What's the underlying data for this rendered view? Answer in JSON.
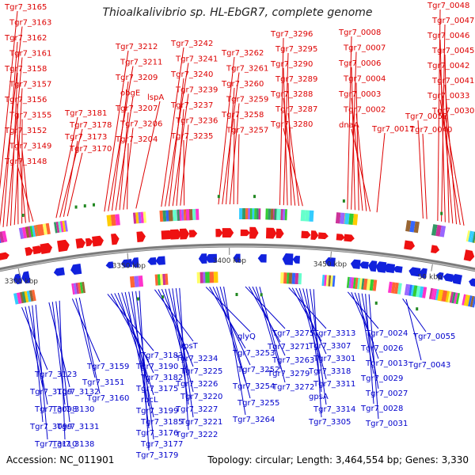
{
  "title": "Thioalkalivibrio sp. HL-EbGR7, complete genome",
  "accession_text": "Accession: NC_011901",
  "summary_text": "Topology: circular; Length: 3,464,554 bp; Genes: 3,330",
  "colors": {
    "forward_label": "#dd0000",
    "reverse_label": "#0000cc",
    "forward_gene": "#ee1111",
    "reverse_gene": "#1122dd",
    "backbone": "#7a7a7a",
    "scale_tick": "#7a7a7a"
  },
  "scale_labels": [
    "3300 kbp",
    "3350 kbp",
    "3400 kbp",
    "3450 kbp",
    "50 kbp"
  ],
  "forward_labels": [
    "Tgr7_3165",
    "Tgr7_3163",
    "Tgr7_3162",
    "Tgr7_3161",
    "Tgr7_3158",
    "Tgr7_3157",
    "Tgr7_3156",
    "Tgr7_3155",
    "Tgr7_3152",
    "Tgr7_3149",
    "Tgr7_3148",
    "Tgr7_3181",
    "Tgr7_3178",
    "Tgr7_3173",
    "Tgr7_3170",
    "Tgr7_3212",
    "Tgr7_3211",
    "Tgr7_3209",
    "obgE",
    "Tgr7_3207",
    "Tgr7_3206",
    "Tgr7_3204",
    "lspA",
    "Tgr7_3242",
    "Tgr7_3241",
    "Tgr7_3240",
    "Tgr7_3239",
    "Tgr7_3237",
    "Tgr7_3236",
    "Tgr7_3235",
    "Tgr7_3262",
    "Tgr7_3261",
    "Tgr7_3260",
    "Tgr7_3259",
    "Tgr7_3258",
    "Tgr7_3257",
    "Tgr7_3296",
    "Tgr7_3295",
    "Tgr7_3290",
    "Tgr7_3289",
    "Tgr7_3288",
    "Tgr7_3287",
    "Tgr7_3280",
    "Tgr7_0008",
    "Tgr7_0007",
    "Tgr7_0006",
    "Tgr7_0004",
    "Tgr7_0003",
    "Tgr7_0002",
    "dnaA",
    "Tgr7_0017",
    "Tgr7_0048",
    "Tgr7_0047",
    "Tgr7_0046",
    "Tgr7_0045",
    "Tgr7_0042",
    "Tgr7_0041",
    "Tgr7_0033",
    "Tgr7_0030",
    "Tgr7_0052",
    "Tgr7_0040"
  ],
  "reverse_labels": [
    "Tgr7_3123",
    "Tgr7_3109",
    "Tgr7_3098",
    "Tgr7_3099",
    "Tgr7_3110",
    "Tgr7_3132",
    "Tgr7_3130",
    "Tgr7_3131",
    "Tgr7_3138",
    "Tgr7_3159",
    "Tgr7_3151",
    "Tgr7_3160",
    "Tgr7_3183",
    "Tgr7_3190",
    "Tgr7_3182",
    "Tgr7_3175",
    "rbcL",
    "Tgr7_3199",
    "Tgr7_3185",
    "Tgr7_3176",
    "Tgr7_3177",
    "Tgr7_3179",
    "rpsT",
    "Tgr7_3234",
    "Tgr7_3225",
    "Tgr7_3226",
    "Tgr7_3220",
    "Tgr7_3227",
    "Tgr7_3221",
    "Tgr7_3222",
    "glyQ",
    "Tgr7_3253",
    "Tgr7_3252",
    "Tgr7_3254",
    "Tgr7_3255",
    "Tgr7_3264",
    "Tgr7_3275",
    "Tgr7_3271",
    "Tgr7_3263",
    "Tgr7_3279",
    "Tgr7_3272",
    "Tgr7_3313",
    "Tgr7_3307",
    "Tgr7_3301",
    "Tgr7_3318",
    "Tgr7_3311",
    "gpsA",
    "Tgr7_3314",
    "Tgr7_3305",
    "Tgr7_0024",
    "Tgr7_0026",
    "Tgr7_0013",
    "Tgr7_0029",
    "Tgr7_0027",
    "Tgr7_0028",
    "Tgr7_0031",
    "Tgr7_0055",
    "Tgr7_0043"
  ]
}
